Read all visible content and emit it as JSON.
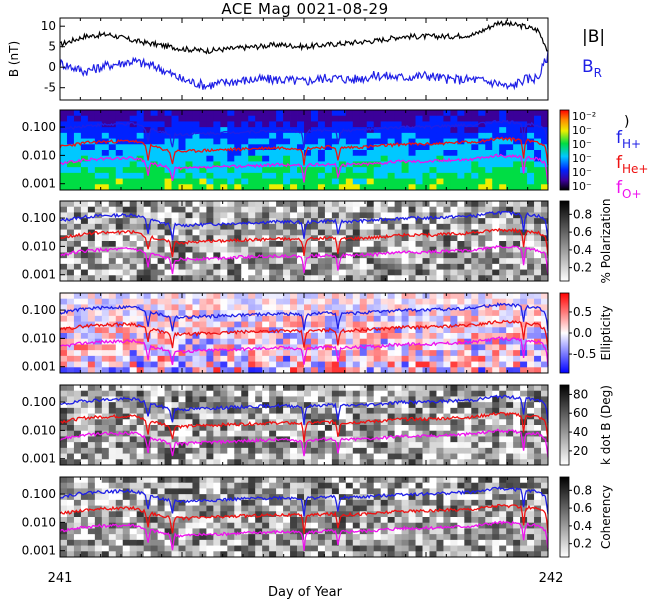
{
  "title": "ACE Mag 0021-08-29",
  "xaxis": {
    "label": "Day of Year",
    "start_label": "241",
    "end_label": "242",
    "range": [
      241,
      242
    ]
  },
  "colors": {
    "black": "#000000",
    "blue": "#1f1fe6",
    "red": "#ee1111",
    "magenta": "#ee11ee",
    "line": "#000000"
  },
  "chart_data": [
    {
      "type": "line",
      "panel": "field",
      "ylabel": "B (nT)",
      "ylim": [
        -8,
        12
      ],
      "yticks": [
        "10",
        "5",
        "0",
        "-5"
      ],
      "ytick_values": [
        10,
        5,
        0,
        -5
      ],
      "legend": [
        "|B|",
        "B_R"
      ],
      "series": [
        {
          "name": "|B|",
          "color": "black",
          "x": [
            241.0,
            241.05,
            241.1,
            241.15,
            241.2,
            241.25,
            241.3,
            241.35,
            241.4,
            241.45,
            241.5,
            241.55,
            241.6,
            241.65,
            241.7,
            241.75,
            241.8,
            241.85,
            241.9,
            241.92,
            241.95,
            241.98,
            242.0
          ],
          "y": [
            5.5,
            7.5,
            8,
            6.5,
            5.5,
            4.5,
            4,
            4.5,
            5,
            5.5,
            5,
            5.5,
            6,
            6.5,
            7.5,
            7.5,
            7.5,
            8,
            11,
            10.5,
            10,
            9,
            4
          ]
        },
        {
          "name": "B_R",
          "color": "blue",
          "x": [
            241.0,
            241.05,
            241.1,
            241.15,
            241.2,
            241.25,
            241.3,
            241.35,
            241.4,
            241.45,
            241.5,
            241.55,
            241.6,
            241.65,
            241.7,
            241.75,
            241.8,
            241.85,
            241.9,
            241.92,
            241.95,
            241.98,
            242.0
          ],
          "y": [
            1,
            -1,
            0.5,
            1.5,
            0,
            -3,
            -4.5,
            -3.5,
            -3,
            -3,
            -3.5,
            -2.5,
            -3,
            -2,
            -2.5,
            -2,
            -3,
            -3,
            -4,
            -5,
            -3,
            -2.5,
            3
          ]
        }
      ]
    },
    {
      "type": "heatmap",
      "panel": "spectrum",
      "scale": "log",
      "ylim": [
        0.0006,
        0.4
      ],
      "yticks": [
        "0.100",
        "0.010",
        "0.001"
      ],
      "ytick_values": [
        0.1,
        0.01,
        0.001
      ],
      "colorbar": {
        "scheme": "rainbow",
        "ticks": [
          "10⁻²",
          "10⁻",
          "10⁻",
          "10⁻",
          "10⁻",
          "10⁻"
        ],
        "close_paren": ")"
      },
      "legend": [
        {
          "base": "f",
          "sub": "H+",
          "color": "blue"
        },
        {
          "base": "f",
          "sub": "He+",
          "color": "red"
        },
        {
          "base": "f",
          "sub": "O+",
          "color": "magenta"
        }
      ]
    },
    {
      "type": "heatmap",
      "panel": "polarization",
      "scale": "log",
      "ylim": [
        0.0006,
        0.4
      ],
      "yticks": [
        "0.100",
        "0.010",
        "0.001"
      ],
      "ytick_values": [
        0.1,
        0.01,
        0.001
      ],
      "colorbar": {
        "scheme": "gray",
        "label": "% Polarization",
        "ticks": [
          "0.8",
          "0.6",
          "0.4",
          "0.2"
        ],
        "tick_values": [
          0.8,
          0.6,
          0.4,
          0.2
        ],
        "range": [
          0.05,
          0.95
        ]
      }
    },
    {
      "type": "heatmap",
      "panel": "ellipticity",
      "scale": "log",
      "ylim": [
        0.0006,
        0.4
      ],
      "yticks": [
        "0.100",
        "0.010",
        "0.001"
      ],
      "ytick_values": [
        0.1,
        0.01,
        0.001
      ],
      "colorbar": {
        "scheme": "bwr",
        "label": "Ellipticity",
        "ticks": [
          "0.5",
          "0.0",
          "-0.5"
        ],
        "tick_values": [
          0.5,
          0.0,
          -0.5
        ],
        "range": [
          -0.95,
          0.95
        ]
      }
    },
    {
      "type": "heatmap",
      "panel": "kdotb",
      "scale": "log",
      "ylim": [
        0.0006,
        0.4
      ],
      "yticks": [
        "0.100",
        "0.010",
        "0.001"
      ],
      "ytick_values": [
        0.1,
        0.01,
        0.001
      ],
      "colorbar": {
        "scheme": "gray",
        "label": "k dot B (Deg)",
        "ticks": [
          "80",
          "60",
          "40",
          "20"
        ],
        "tick_values": [
          80,
          60,
          40,
          20
        ],
        "range": [
          5,
          90
        ]
      }
    },
    {
      "type": "heatmap",
      "panel": "coherency",
      "scale": "log",
      "ylim": [
        0.0006,
        0.4
      ],
      "yticks": [
        "0.100",
        "0.010",
        "0.001"
      ],
      "ytick_values": [
        0.1,
        0.01,
        0.001
      ],
      "colorbar": {
        "scheme": "gray",
        "label": "Coherency",
        "ticks": [
          "0.8",
          "0.6",
          "0.4",
          "0.2"
        ],
        "tick_values": [
          0.8,
          0.6,
          0.4,
          0.2
        ],
        "range": [
          0.05,
          0.95
        ]
      }
    }
  ],
  "gyro_lines": {
    "x": [
      241.0,
      241.05,
      241.08,
      241.15,
      241.18,
      241.22,
      241.25,
      241.3,
      241.35,
      241.4,
      241.45,
      241.5,
      241.55,
      241.58,
      241.62,
      241.65,
      241.7,
      241.75,
      241.8,
      241.85,
      241.9,
      241.92,
      241.95,
      241.98,
      242.0
    ],
    "fH": [
      0.08,
      0.11,
      0.12,
      0.13,
      0.09,
      0.06,
      0.055,
      0.06,
      0.065,
      0.07,
      0.075,
      0.07,
      0.08,
      0.075,
      0.08,
      0.085,
      0.1,
      0.1,
      0.11,
      0.12,
      0.16,
      0.15,
      0.14,
      0.12,
      0.07
    ],
    "dips": [
      241.18,
      241.23,
      241.5,
      241.57,
      241.95,
      242.0
    ]
  }
}
